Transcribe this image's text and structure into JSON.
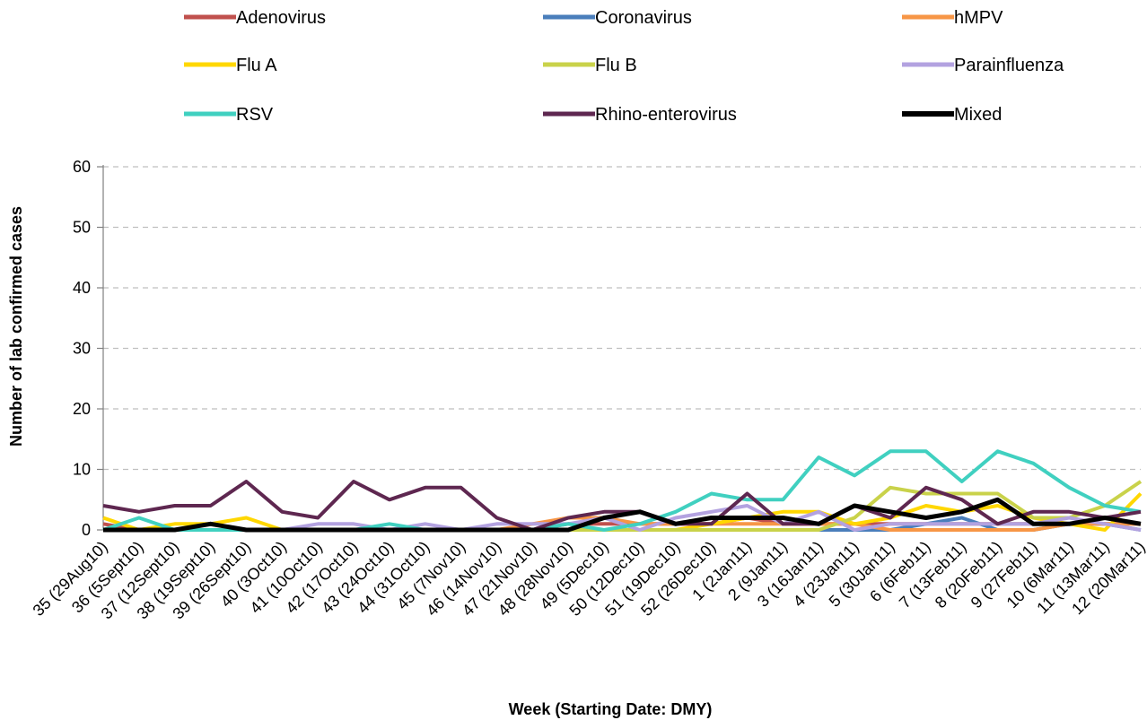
{
  "chart_data": {
    "type": "line",
    "title": "",
    "xlabel": "Week (Starting Date: DMY)",
    "ylabel": "Number of lab confirmed cases",
    "ylim": [
      0,
      60
    ],
    "yticks": [
      0,
      10,
      20,
      30,
      40,
      50,
      60
    ],
    "grid": "horizontal dashed",
    "legend_position": "top",
    "categories": [
      "35 (29Aug10)",
      "36 (5Sept10)",
      "37 (12Sept10)",
      "38 (19Sept10)",
      "39 (26Sept10)",
      "40 (3Oct10)",
      "41 (10Oct10)",
      "42 (17Oct10)",
      "43 (24Oct10)",
      "44 (31Oct10)",
      "45 (7Nov10)",
      "46 (14Nov10)",
      "47 (21Nov10)",
      "48 (28Nov10)",
      "49 (5Dec10)",
      "50 (12Dec10)",
      "51 (19Dec10)",
      "52 (26Dec10)",
      "1 (2Jan11)",
      "2 (9Jan11)",
      "3 (16Jan11)",
      "4 (23Jan11)",
      "5 (30Jan11)",
      "6 (6Feb11)",
      "7 (13Feb11)",
      "8 (20Feb11)",
      "9 (27Feb11)",
      "10 (6Mar11)",
      "11 (13Mar11)",
      "12 (20Mar11)"
    ],
    "series": [
      {
        "name": "Adenovirus",
        "color": "#c0504d",
        "width": 4,
        "values": [
          1,
          0,
          0,
          0,
          0,
          0,
          0,
          0,
          0,
          0,
          0,
          0,
          0,
          1,
          1,
          1,
          1,
          1,
          2,
          1,
          1,
          1,
          1,
          1,
          1,
          1,
          1,
          1,
          1,
          1
        ]
      },
      {
        "name": "Coronavirus",
        "color": "#4a7ebb",
        "width": 4,
        "values": [
          0,
          0,
          0,
          0,
          0,
          0,
          0,
          0,
          0,
          0,
          0,
          0,
          0,
          0,
          0,
          0,
          0,
          0,
          0,
          0,
          0,
          0,
          0,
          1,
          2,
          0,
          0,
          1,
          1,
          0
        ]
      },
      {
        "name": "hMPV",
        "color": "#f79646",
        "width": 4,
        "values": [
          0,
          0,
          0,
          0,
          0,
          0,
          0,
          0,
          0,
          0,
          0,
          0,
          1,
          2,
          2,
          1,
          1,
          1,
          1,
          1,
          1,
          1,
          0,
          0,
          0,
          0,
          0,
          1,
          1,
          1
        ]
      },
      {
        "name": "Flu A",
        "color": "#ffd700",
        "width": 4,
        "values": [
          2,
          0,
          1,
          1,
          2,
          0,
          0,
          0,
          0,
          0,
          0,
          0,
          0,
          0,
          0,
          0,
          0,
          1,
          2,
          3,
          3,
          1,
          2,
          4,
          3,
          4,
          2,
          1,
          0,
          6
        ]
      },
      {
        "name": "Flu B",
        "color": "#c9d24a",
        "width": 4,
        "values": [
          0,
          0,
          0,
          0,
          0,
          0,
          0,
          0,
          0,
          0,
          0,
          0,
          0,
          0,
          0,
          0,
          0,
          0,
          0,
          0,
          0,
          2,
          7,
          6,
          6,
          6,
          2,
          2,
          4,
          8
        ]
      },
      {
        "name": "Parainfluenza",
        "color": "#b3a2e0",
        "width": 4,
        "values": [
          0,
          0,
          0,
          0,
          0,
          0,
          1,
          1,
          0,
          1,
          0,
          1,
          1,
          1,
          2,
          0,
          2,
          3,
          4,
          1,
          3,
          0,
          1,
          1,
          1,
          1,
          1,
          2,
          1,
          0
        ]
      },
      {
        "name": "RSV",
        "color": "#40d0c0",
        "width": 4,
        "values": [
          0,
          2,
          0,
          0,
          0,
          0,
          0,
          0,
          1,
          0,
          0,
          0,
          0,
          1,
          0,
          1,
          3,
          6,
          5,
          5,
          12,
          9,
          13,
          13,
          8,
          13,
          11,
          7,
          4,
          3
        ]
      },
      {
        "name": "Rhino-enterovirus",
        "color": "#5e2750",
        "width": 4,
        "values": [
          4,
          3,
          4,
          4,
          8,
          3,
          2,
          8,
          5,
          7,
          7,
          2,
          0,
          2,
          3,
          3,
          1,
          1,
          6,
          1,
          1,
          4,
          2,
          7,
          5,
          1,
          3,
          3,
          2,
          3
        ]
      },
      {
        "name": "Mixed",
        "color": "#000000",
        "width": 5,
        "values": [
          0,
          0,
          0,
          1,
          0,
          0,
          0,
          0,
          0,
          0,
          0,
          0,
          0,
          0,
          2,
          3,
          1,
          2,
          2,
          2,
          1,
          4,
          3,
          2,
          3,
          5,
          1,
          1,
          2,
          1
        ]
      }
    ]
  }
}
